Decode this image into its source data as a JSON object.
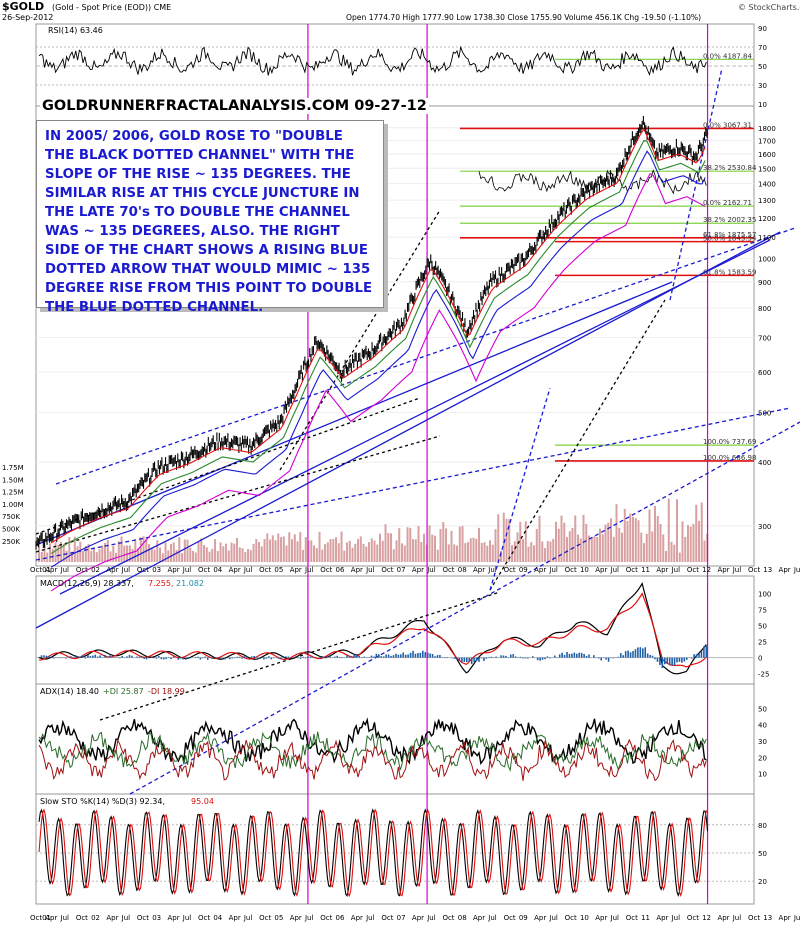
{
  "header": {
    "symbol": "$GOLD",
    "description": "(Gold - Spot Price (EOD)) CME",
    "date": "26-Sep-2012",
    "quote": "Open 1774.70  High 1777.90  Low 1738.30  Close 1755.90  Volume 456.1K  Chg -19.50 (-1.10%)",
    "watermark": "© StockCharts.com"
  },
  "site_title": "GOLDRUNNERFRACTALANALYSIS.COM  09-27-12",
  "annotation": "IN 2005/ 2006, GOLD ROSE TO \"DOUBLE THE BLACK DOTTED CHANNEL\" WITH THE SLOPE OF THE RISE ~ 135 DEGREES.  THE SIMILAR RISE AT THIS CYCLE JUNCTURE IN THE LATE 70's TO DOUBLE THE CHANNEL WAS ~ 135 DEGREES, ALSO.  THE RIGHT SIDE OF THE CHART SHOWS A RISING BLUE DOTTED ARROW THAT WOULD MIMIC ~ 135 DEGREE RISE FROM THIS POINT TO DOUBLE THE BLUE DOTTED CHANNEL.",
  "colors": {
    "blue_line": "#1a1ad0",
    "magenta": "#d400d4",
    "red": "#e01010",
    "green": "#7fd040",
    "price": "#000000",
    "volume": "#d8a0a0",
    "macd_hist": "#1f5fa8"
  },
  "chart_data": [
    {
      "type": "line",
      "panel": "rsi",
      "title": "RSI(14) 63.46",
      "y_ticks": [
        90,
        70,
        50,
        30,
        10
      ],
      "ylim": [
        10,
        90
      ],
      "levels": [
        70,
        30
      ],
      "last": 63.46
    },
    {
      "type": "line",
      "panel": "price",
      "series_labels": [
        "Price",
        "Volume"
      ],
      "scale": "log",
      "y_ticks": [
        300,
        400,
        500,
        600,
        700,
        800,
        900,
        1000,
        1100,
        1200,
        1300,
        1400,
        1500,
        1600,
        1700,
        1800
      ],
      "ylim": [
        255,
        1950
      ],
      "volume_ticks": [
        "1.75M",
        "1.50M",
        "1.25M",
        "1.00M",
        "750K",
        "500K",
        "250K"
      ],
      "x_ticks": [
        "Oct01",
        "Apr",
        "Jul",
        "Oct",
        "02",
        "Apr",
        "Jul",
        "Oct",
        "03",
        "Apr",
        "Jul",
        "Oct",
        "04",
        "Apr",
        "Jul",
        "Oct",
        "05",
        "Apr",
        "Jul",
        "Oct",
        "06",
        "Apr",
        "Jul",
        "Oct",
        "07",
        "Apr",
        "Jul",
        "Oct",
        "08",
        "Apr",
        "Jul",
        "Oct",
        "09",
        "Apr",
        "Jul",
        "Oct",
        "10",
        "Apr",
        "Jul",
        "Oct",
        "11",
        "Apr",
        "Jul",
        "Oct",
        "12",
        "Apr",
        "Jul",
        "Oct",
        "13",
        "Apr",
        "Jul"
      ],
      "x": [
        2001.75,
        2002.25,
        2002.75,
        2003.25,
        2003.75,
        2004.25,
        2004.75,
        2005.25,
        2005.75,
        2006.0,
        2006.35,
        2006.75,
        2007.25,
        2007.75,
        2008.2,
        2008.5,
        2008.8,
        2009.2,
        2009.75,
        2010.25,
        2010.75,
        2011.25,
        2011.67,
        2011.9,
        2012.25,
        2012.55,
        2012.74
      ],
      "series": [
        {
          "name": "Price",
          "values": [
            275,
            300,
            320,
            335,
            390,
            410,
            440,
            430,
            480,
            560,
            690,
            600,
            660,
            750,
            990,
            860,
            720,
            900,
            1000,
            1190,
            1350,
            1450,
            1850,
            1600,
            1650,
            1580,
            1756
          ]
        }
      ],
      "fib_levels": [
        {
          "label": "0.0% 3067.31",
          "value": 3067.31
        },
        {
          "label": "38.2% 2530.84",
          "value": 2530.84
        },
        {
          "label": "0.0% 2162.71",
          "value": 2162.71
        },
        {
          "label": "38.2% 2002.35",
          "value": 2002.35
        },
        {
          "label": "61.8% 1875.57",
          "value": 1875.57
        },
        {
          "label": "50.0% 1843.34",
          "value": 1843.34
        },
        {
          "label": "61.8% 1583.59",
          "value": 1583.59
        },
        {
          "label": "100.0% 737.69",
          "value": 737.69
        },
        {
          "label": "100.0% 686.98",
          "value": 686.98
        },
        {
          "label": "0.0% 4187.84",
          "value": 4187.84
        }
      ]
    },
    {
      "type": "line",
      "panel": "macd",
      "title": "MACD(12,26,9) 28.337, 7.255, 21.082",
      "label_main": "MACD(12,26,9) 28.337,",
      "label_sig": "7.255,",
      "label_hist": "21.082",
      "y_ticks": [
        100,
        75,
        50,
        25,
        0,
        -25
      ],
      "ylim": [
        -35,
        115
      ],
      "x": [
        2001.75,
        2003,
        2004,
        2005,
        2006,
        2007,
        2008.1,
        2008.8,
        2009.4,
        2010,
        2010.6,
        2011.1,
        2011.67,
        2012.0,
        2012.4,
        2012.74
      ],
      "series": [
        {
          "name": "MACD",
          "values": [
            2,
            8,
            4,
            2,
            3,
            8,
            60,
            -20,
            30,
            20,
            55,
            40,
            120,
            -15,
            -25,
            28
          ]
        },
        {
          "name": "Signal",
          "values": [
            1,
            6,
            5,
            3,
            2,
            6,
            50,
            -10,
            25,
            22,
            45,
            45,
            100,
            0,
            -20,
            7
          ]
        }
      ]
    },
    {
      "type": "line",
      "panel": "adx",
      "title": "ADX(14) 18.40  +DI 25.87  -DI 18.99",
      "label_adx": "ADX(14) 18.40",
      "label_pdi": "+DI 25.87",
      "label_mdi": "-DI 18.99",
      "y_ticks": [
        50,
        40,
        30,
        20,
        10
      ],
      "ylim": [
        0,
        60
      ]
    },
    {
      "type": "line",
      "panel": "sto",
      "title": "Slow STO %K(14) %D(3) 92.34, 95.04",
      "label_main": "Slow STO %K(14) %D(3) 92.34,",
      "label_d": "95.04",
      "y_ticks": [
        80,
        50,
        20
      ],
      "ylim": [
        0,
        100
      ]
    }
  ]
}
